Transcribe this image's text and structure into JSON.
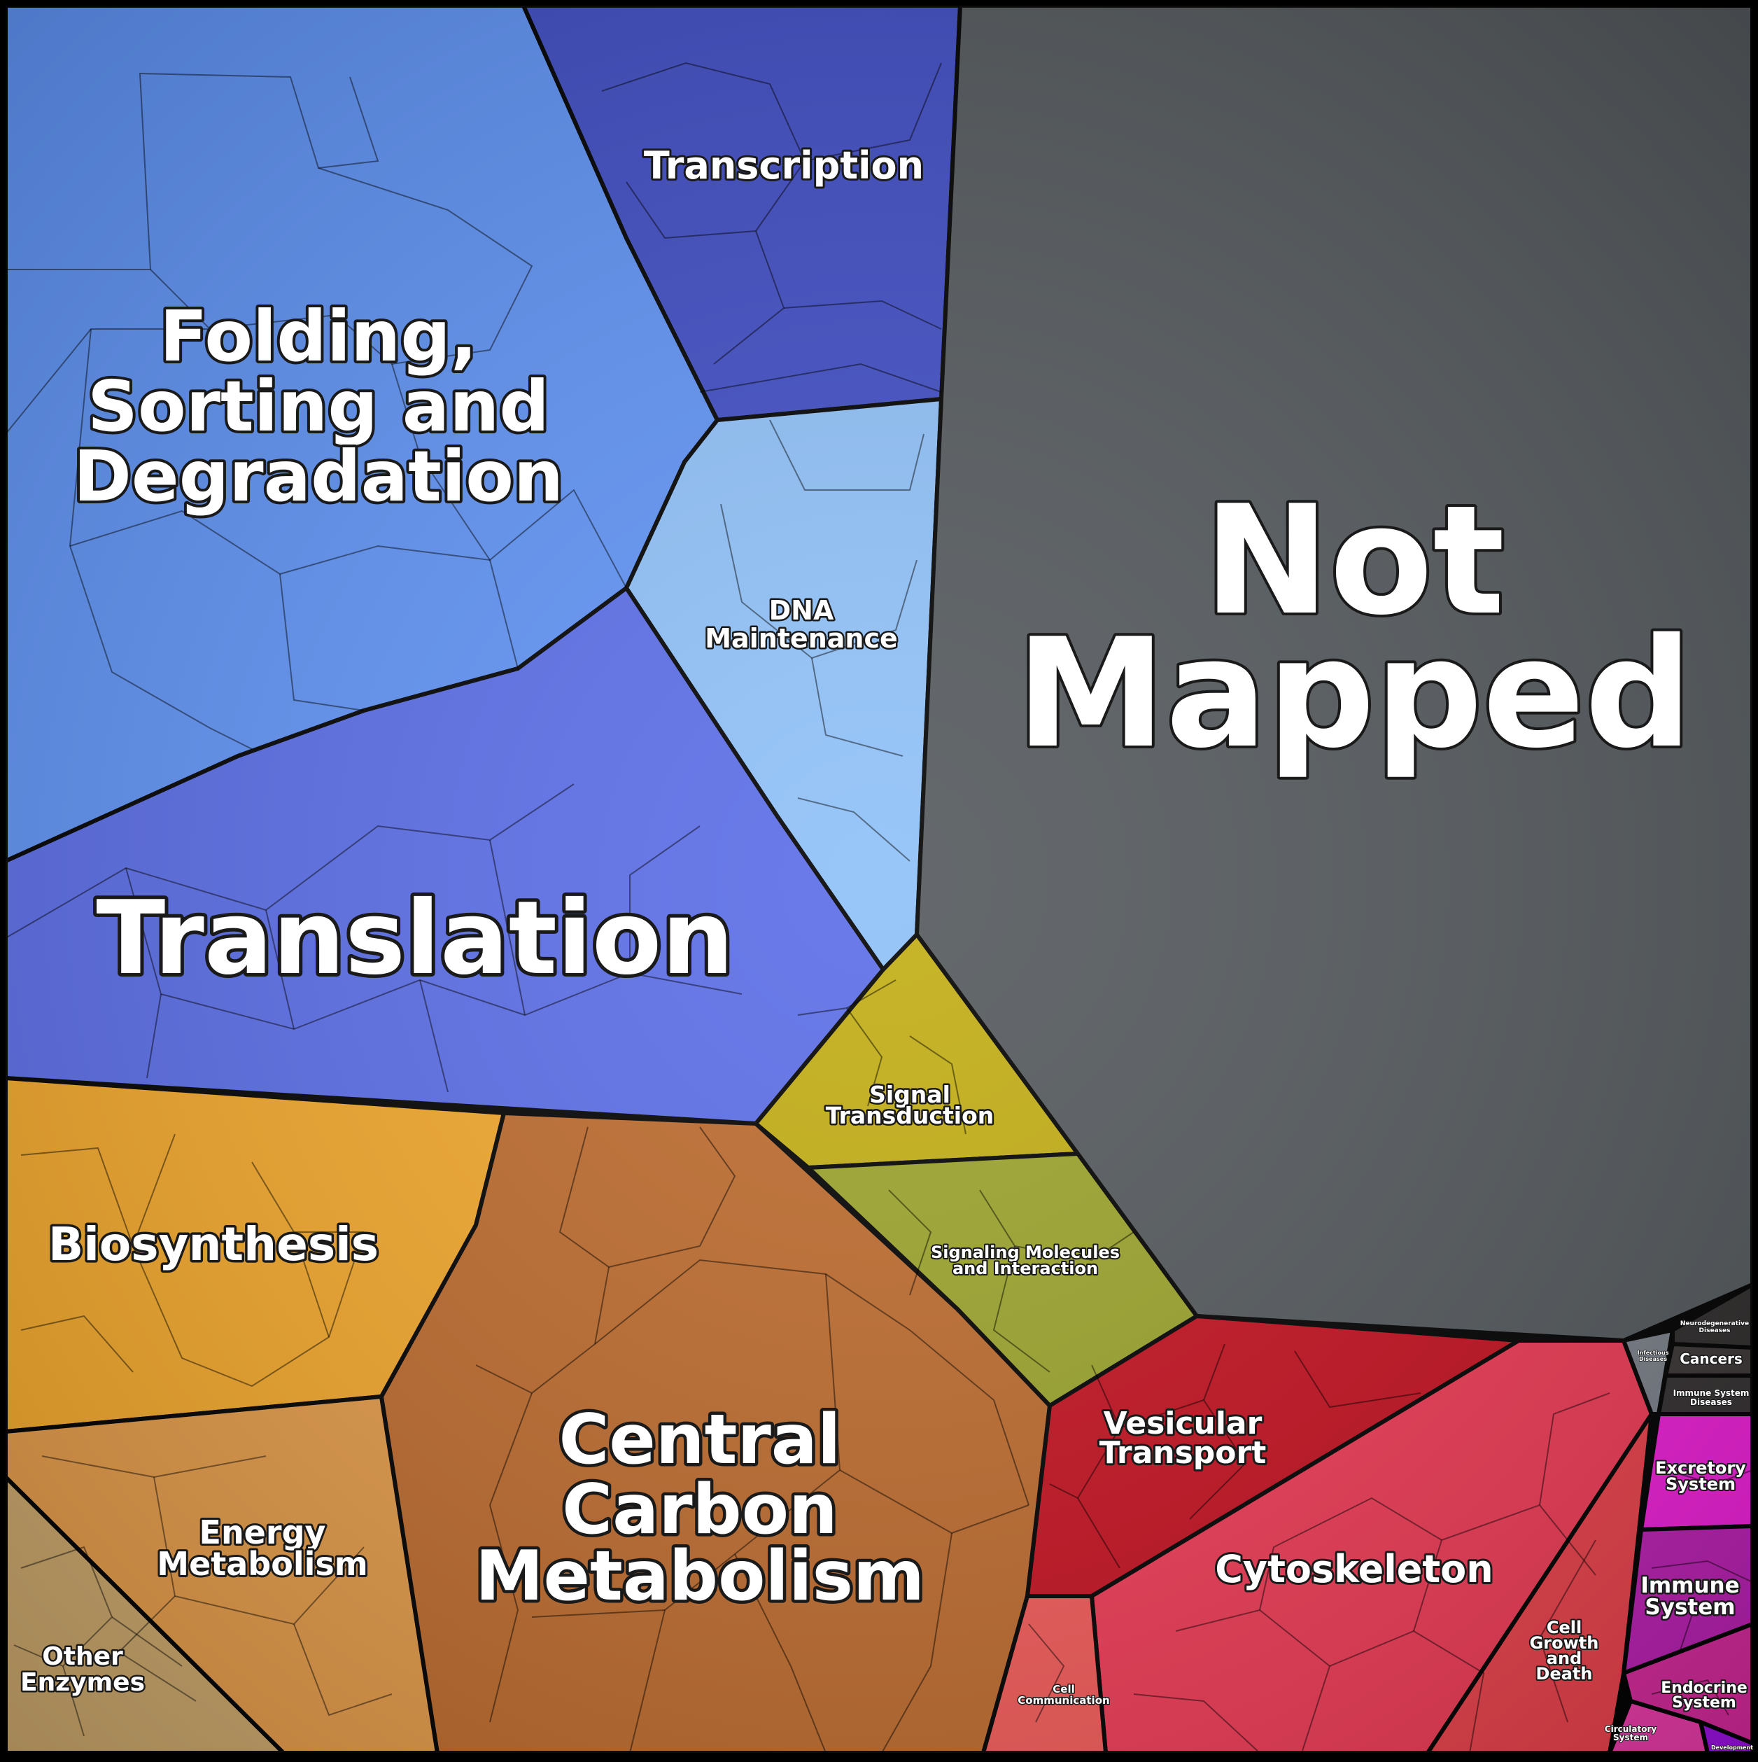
{
  "colors": {
    "folding": "#5f93f5",
    "transcription": "#3f4dc4",
    "dna": "#8ec0f8",
    "translation": "#5a6de8",
    "not_mapped": "#53585c",
    "signal": "#c2ad12",
    "signaling_molecules": "#9aa32a",
    "biosynthesis": "#f2a72a",
    "energy": "#e29a48",
    "other_enzymes": "#c9a56a",
    "central_carbon": "#bd6a2c",
    "central_carbon_left": "#c7561e",
    "vesicular": "#c4101f",
    "cytoskeleton": "#ee3a55",
    "cell_comm": "#f25a58",
    "cell_growth": "#e8404a",
    "excretory": "#ec1ed6",
    "immune": "#b81fb0",
    "endocrine": "#d4289a",
    "circulatory": "#e83aa8",
    "development": "#9a10e0",
    "cancers": "#3a3535",
    "neuro": "#2e2b2b",
    "immune_disease": "#332f30",
    "infectious": "#7a7f88"
  },
  "labels": {
    "folding": [
      "Folding,",
      "Sorting and",
      "Degradation"
    ],
    "transcription": "Transcription",
    "dna": [
      "DNA",
      "Maintenance"
    ],
    "translation": "Translation",
    "not_mapped": [
      "Not",
      "Mapped"
    ],
    "signal": [
      "Signal",
      "Transduction"
    ],
    "signaling_molecules": [
      "Signaling Molecules",
      "and Interaction"
    ],
    "biosynthesis": "Biosynthesis",
    "energy": [
      "Energy",
      "Metabolism"
    ],
    "other_enzymes": [
      "Other",
      "Enzymes"
    ],
    "central_carbon": [
      "Central",
      "Carbon",
      "Metabolism"
    ],
    "vesicular": [
      "Vesicular",
      "Transport"
    ],
    "cytoskeleton": "Cytoskeleton",
    "cell_comm": [
      "Cell",
      "Communication"
    ],
    "cell_growth": [
      "Cell",
      "Growth",
      "and",
      "Death"
    ],
    "excretory": [
      "Excretory",
      "System"
    ],
    "immune": [
      "Immune",
      "System"
    ],
    "endocrine": [
      "Endocrine",
      "System"
    ],
    "circulatory": [
      "Circulatory",
      "System"
    ],
    "development": "Development",
    "cancers": "Cancers",
    "neuro": [
      "Neurodegenerative",
      "Diseases"
    ],
    "immune_disease": [
      "Immune System",
      "Diseases"
    ],
    "infectious": [
      "Infectious",
      "Diseases"
    ]
  }
}
